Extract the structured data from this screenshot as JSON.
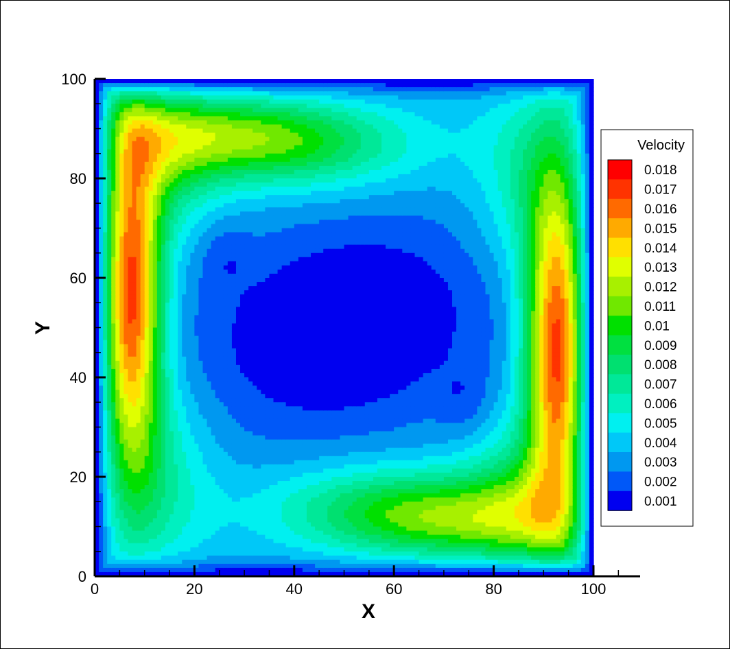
{
  "chart_data": {
    "type": "heatmap",
    "title": "",
    "xlabel": "X",
    "ylabel": "Y",
    "xlim": [
      0,
      100
    ],
    "ylim": [
      0,
      100
    ],
    "xticks": [
      "0",
      "20",
      "40",
      "60",
      "80",
      "100"
    ],
    "yticks": [
      "0",
      "20",
      "40",
      "60",
      "80",
      "100"
    ],
    "xtick_values": [
      0,
      20,
      40,
      60,
      80,
      100
    ],
    "ytick_values": [
      0,
      20,
      40,
      60,
      80,
      100
    ],
    "colorbar": {
      "title": "Velocity",
      "levels": [
        "0.018",
        "0.017",
        "0.016",
        "0.015",
        "0.014",
        "0.013",
        "0.012",
        "0.011",
        "0.01",
        "0.009",
        "0.008",
        "0.007",
        "0.006",
        "0.005",
        "0.004",
        "0.003",
        "0.002",
        "0.001"
      ],
      "colors": [
        "#ff0000",
        "#ff3300",
        "#ff6a00",
        "#ffaa00",
        "#ffe000",
        "#e0ff00",
        "#a8f000",
        "#70e800",
        "#00e000",
        "#00e040",
        "#00e070",
        "#00e898",
        "#00f0c0",
        "#00f0f0",
        "#00c8f8",
        "#0098f0",
        "#0058f8",
        "#0000f0"
      ]
    },
    "field": {
      "description_level_max": 0.0185,
      "features": [
        {
          "x": 7,
          "y": 56,
          "value": 0.0185
        },
        {
          "x": 93,
          "y": 46,
          "value": 0.0185
        },
        {
          "x": 29,
          "y": 89,
          "value": 0.0132
        },
        {
          "x": 71,
          "y": 11,
          "value": 0.0132
        },
        {
          "x": 50,
          "y": 50,
          "value": 0.0005
        },
        {
          "x": 26,
          "y": 65,
          "value": 0.0009
        },
        {
          "x": 74,
          "y": 35,
          "value": 0.0009
        }
      ]
    },
    "grid": false,
    "legend": "right"
  }
}
